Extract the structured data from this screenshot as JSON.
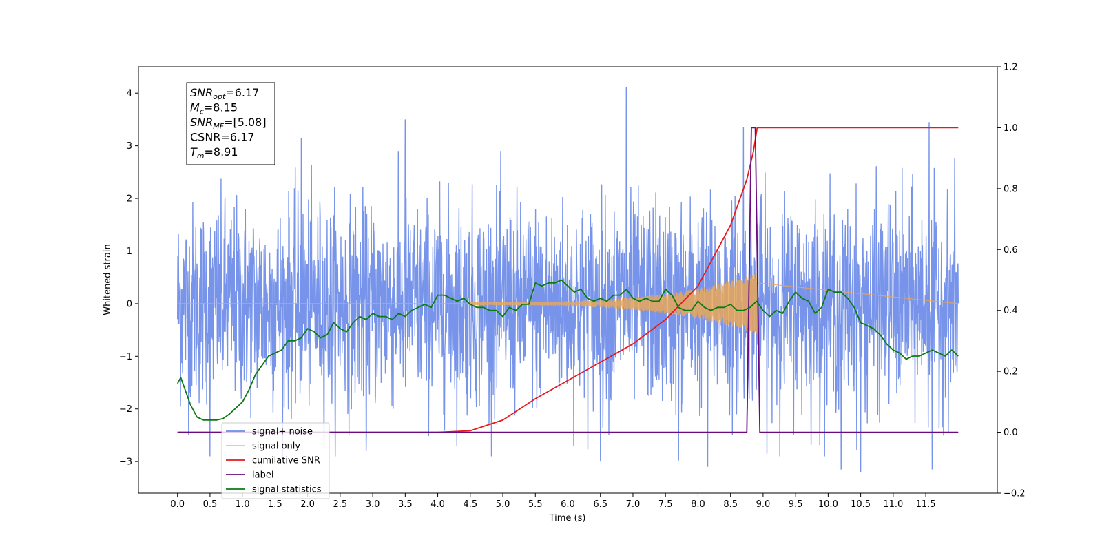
{
  "chart_data": {
    "type": "line",
    "xlabel": "Time (s)",
    "ylabel_left": "Whitened strain",
    "ylabel_right": "",
    "xlim": [
      -0.6,
      12.6
    ],
    "ylim_left": [
      -3.6,
      4.5
    ],
    "ylim_right": [
      -0.2,
      1.2
    ],
    "x_ticks": [
      0.0,
      0.5,
      1.0,
      1.5,
      2.0,
      2.5,
      3.0,
      3.5,
      4.0,
      4.5,
      5.0,
      5.5,
      6.0,
      6.5,
      7.0,
      7.5,
      8.0,
      8.5,
      9.0,
      9.5,
      10.0,
      10.5,
      11.0,
      11.5
    ],
    "x_tick_labels": [
      "0.0",
      "0.5",
      "1.0",
      "1.5",
      "2.0",
      "2.5",
      "3.0",
      "3.5",
      "4.0",
      "4.5",
      "5.0",
      "5.5",
      "6.0",
      "6.5",
      "7.0",
      "7.5",
      "8.0",
      "8.5",
      "9.0",
      "9.5",
      "10.0",
      "10.5",
      "11.0",
      "11.5"
    ],
    "y_left_ticks": [
      4,
      3,
      2,
      1,
      0,
      -1,
      -2,
      -3
    ],
    "y_left_tick_labels": [
      "4",
      "3",
      "2",
      "1",
      "0",
      "−1",
      "−2",
      "−3"
    ],
    "y_right_ticks": [
      1.2,
      1.0,
      0.8,
      0.6,
      0.4,
      0.2,
      0.0,
      -0.2
    ],
    "y_right_tick_labels": [
      "1.2",
      "1.0",
      "0.8",
      "0.6",
      "0.4",
      "0.2",
      "0.0",
      "−0.2"
    ],
    "grid": false,
    "legend_placement": "lower-left",
    "annotation": {
      "lines": [
        {
          "base": "SNR",
          "sub": "opt",
          "value": "=6.17"
        },
        {
          "base": "M",
          "sub": "c",
          "value": "=8.15"
        },
        {
          "base": "SNR",
          "sub": "MF",
          "value": "=[5.08]"
        },
        {
          "base": "CSNR",
          "sub": "",
          "value": "=6.17"
        },
        {
          "base": "T",
          "sub": "m",
          "value": "=8.91"
        }
      ]
    },
    "legend": [
      {
        "label": "signal+ noise",
        "color": "#6b8be8"
      },
      {
        "label": "signal only",
        "color": "#f5c27a"
      },
      {
        "label": "cumilative SNR",
        "color": "#e8191c"
      },
      {
        "label": "label",
        "color": "#6a0b7e"
      },
      {
        "label": "signal statistics",
        "color": "#0b7a10"
      }
    ],
    "series": [
      {
        "name": "signal+ noise",
        "axis": "left",
        "color": "#6b8be8",
        "x_range": [
          0.0,
          12.0
        ],
        "envelope_typical": 1.5,
        "peaks": [
          {
            "x": 6.9,
            "y": 4.12
          },
          {
            "x": 11.55,
            "y": 3.45
          },
          {
            "x": 3.5,
            "y": 3.5
          },
          {
            "x": 8.7,
            "y": 3.35
          },
          {
            "x": 1.9,
            "y": 3.15
          },
          {
            "x": 10.5,
            "y": -3.2
          },
          {
            "x": 11.6,
            "y": -3.15
          },
          {
            "x": 8.15,
            "y": -3.1
          },
          {
            "x": 6.5,
            "y": -3.0
          },
          {
            "x": 0.5,
            "y": -2.9
          },
          {
            "x": 7.7,
            "y": -2.98
          },
          {
            "x": 10.2,
            "y": -3.15
          },
          {
            "x": 2.9,
            "y": -2.8
          }
        ]
      },
      {
        "name": "signal only",
        "axis": "left",
        "color": "#e8a75a",
        "chirp_start": 4.5,
        "chirp_end": 8.91,
        "amplitude_end": 0.55
      },
      {
        "name": "cumilative SNR",
        "axis": "right",
        "color": "#e8191c",
        "x": [
          0.0,
          4.0,
          4.5,
          5.0,
          5.5,
          6.0,
          6.5,
          7.0,
          7.5,
          8.0,
          8.5,
          8.75,
          8.85,
          8.91,
          12.0
        ],
        "y": [
          0.0,
          0.0,
          0.005,
          0.04,
          0.11,
          0.17,
          0.23,
          0.29,
          0.37,
          0.48,
          0.68,
          0.83,
          0.92,
          1.0,
          1.0
        ]
      },
      {
        "name": "label",
        "axis": "right",
        "color": "#6a0b7e",
        "x": [
          0.0,
          8.75,
          8.82,
          8.88,
          8.95,
          12.0
        ],
        "y": [
          0.0,
          0.0,
          1.0,
          1.0,
          0.0,
          0.0
        ]
      },
      {
        "name": "signal statistics",
        "axis": "right",
        "color": "#0b7a10",
        "x": [
          0.0,
          0.05,
          0.1,
          0.2,
          0.3,
          0.4,
          0.5,
          0.6,
          0.7,
          0.8,
          0.9,
          1.0,
          1.1,
          1.2,
          1.3,
          1.4,
          1.5,
          1.6,
          1.7,
          1.8,
          1.9,
          2.0,
          2.1,
          2.2,
          2.3,
          2.4,
          2.5,
          2.6,
          2.7,
          2.8,
          2.9,
          3.0,
          3.1,
          3.2,
          3.3,
          3.4,
          3.5,
          3.6,
          3.7,
          3.8,
          3.9,
          4.0,
          4.1,
          4.2,
          4.3,
          4.4,
          4.5,
          4.6,
          4.7,
          4.8,
          4.9,
          5.0,
          5.1,
          5.2,
          5.3,
          5.4,
          5.5,
          5.6,
          5.7,
          5.8,
          5.9,
          6.0,
          6.1,
          6.2,
          6.3,
          6.4,
          6.5,
          6.6,
          6.7,
          6.8,
          6.9,
          7.0,
          7.1,
          7.2,
          7.3,
          7.4,
          7.5,
          7.6,
          7.7,
          7.8,
          7.9,
          8.0,
          8.1,
          8.2,
          8.3,
          8.4,
          8.5,
          8.6,
          8.7,
          8.8,
          8.9,
          9.0,
          9.1,
          9.2,
          9.3,
          9.4,
          9.5,
          9.6,
          9.7,
          9.8,
          9.9,
          10.0,
          10.1,
          10.2,
          10.3,
          10.4,
          10.5,
          10.6,
          10.7,
          10.8,
          10.9,
          11.0,
          11.1,
          11.2,
          11.3,
          11.4,
          11.5,
          11.6,
          11.7,
          11.8,
          11.9,
          12.0
        ],
        "y": [
          0.16,
          0.18,
          0.15,
          0.09,
          0.05,
          0.04,
          0.04,
          0.04,
          0.045,
          0.06,
          0.08,
          0.1,
          0.14,
          0.19,
          0.22,
          0.25,
          0.26,
          0.27,
          0.3,
          0.3,
          0.31,
          0.34,
          0.33,
          0.31,
          0.32,
          0.36,
          0.34,
          0.33,
          0.36,
          0.38,
          0.37,
          0.39,
          0.38,
          0.38,
          0.37,
          0.39,
          0.38,
          0.4,
          0.41,
          0.42,
          0.41,
          0.45,
          0.45,
          0.44,
          0.43,
          0.44,
          0.42,
          0.41,
          0.41,
          0.4,
          0.4,
          0.38,
          0.41,
          0.4,
          0.42,
          0.42,
          0.49,
          0.48,
          0.49,
          0.49,
          0.5,
          0.48,
          0.46,
          0.47,
          0.44,
          0.43,
          0.44,
          0.43,
          0.45,
          0.45,
          0.47,
          0.44,
          0.43,
          0.44,
          0.43,
          0.43,
          0.47,
          0.45,
          0.41,
          0.4,
          0.4,
          0.43,
          0.41,
          0.4,
          0.41,
          0.41,
          0.42,
          0.4,
          0.4,
          0.41,
          0.43,
          0.4,
          0.38,
          0.4,
          0.39,
          0.43,
          0.46,
          0.44,
          0.43,
          0.39,
          0.41,
          0.47,
          0.46,
          0.46,
          0.44,
          0.41,
          0.36,
          0.35,
          0.34,
          0.32,
          0.29,
          0.27,
          0.26,
          0.24,
          0.25,
          0.25,
          0.26,
          0.27,
          0.26,
          0.25,
          0.27,
          0.25
        ]
      }
    ]
  }
}
